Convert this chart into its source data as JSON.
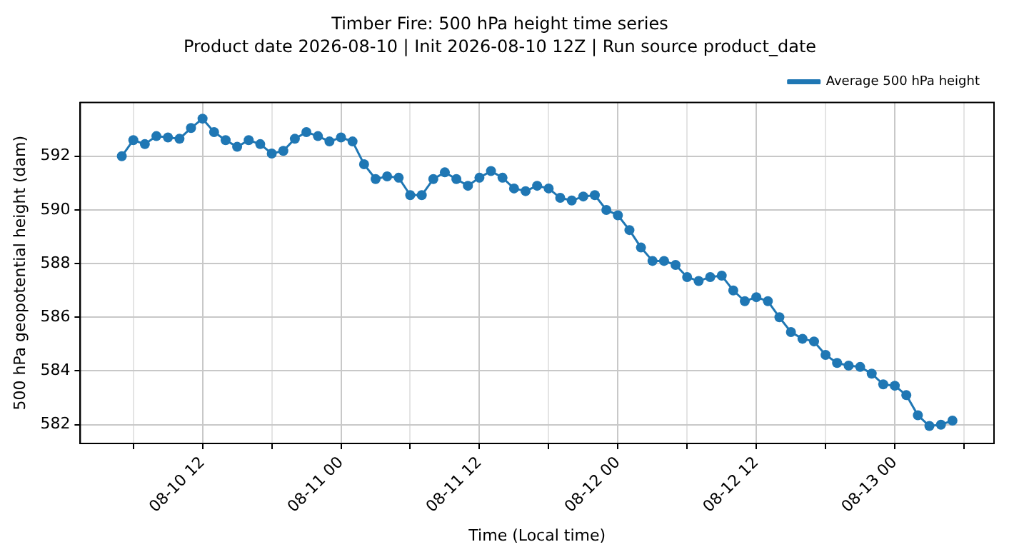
{
  "chart_data": {
    "type": "line",
    "title": "Timber Fire: 500 hPa height time series",
    "subtitle": "Product date 2026-08-10 | Init 2026-08-10 12Z | Run source product_date",
    "xlabel": "Time (Local time)",
    "ylabel": "500 hPa geopotential height (dam)",
    "x": [
      "2026-08-10T05:00",
      "2026-08-10T06:00",
      "2026-08-10T07:00",
      "2026-08-10T08:00",
      "2026-08-10T09:00",
      "2026-08-10T10:00",
      "2026-08-10T11:00",
      "2026-08-10T12:00",
      "2026-08-10T13:00",
      "2026-08-10T14:00",
      "2026-08-10T15:00",
      "2026-08-10T16:00",
      "2026-08-10T17:00",
      "2026-08-10T18:00",
      "2026-08-10T19:00",
      "2026-08-10T20:00",
      "2026-08-10T21:00",
      "2026-08-10T22:00",
      "2026-08-10T23:00",
      "2026-08-11T00:00",
      "2026-08-11T01:00",
      "2026-08-11T02:00",
      "2026-08-11T03:00",
      "2026-08-11T04:00",
      "2026-08-11T05:00",
      "2026-08-11T06:00",
      "2026-08-11T07:00",
      "2026-08-11T08:00",
      "2026-08-11T09:00",
      "2026-08-11T10:00",
      "2026-08-11T11:00",
      "2026-08-11T12:00",
      "2026-08-11T13:00",
      "2026-08-11T14:00",
      "2026-08-11T15:00",
      "2026-08-11T16:00",
      "2026-08-11T17:00",
      "2026-08-11T18:00",
      "2026-08-11T19:00",
      "2026-08-11T20:00",
      "2026-08-11T21:00",
      "2026-08-11T22:00",
      "2026-08-11T23:00",
      "2026-08-12T00:00",
      "2026-08-12T01:00",
      "2026-08-12T02:00",
      "2026-08-12T03:00",
      "2026-08-12T04:00",
      "2026-08-12T05:00",
      "2026-08-12T06:00",
      "2026-08-12T07:00",
      "2026-08-12T08:00",
      "2026-08-12T09:00",
      "2026-08-12T10:00",
      "2026-08-12T11:00",
      "2026-08-12T12:00",
      "2026-08-12T13:00",
      "2026-08-12T14:00",
      "2026-08-12T15:00",
      "2026-08-12T16:00",
      "2026-08-12T17:00",
      "2026-08-12T18:00",
      "2026-08-12T19:00",
      "2026-08-12T20:00",
      "2026-08-12T21:00",
      "2026-08-12T22:00",
      "2026-08-12T23:00",
      "2026-08-13T00:00",
      "2026-08-13T01:00",
      "2026-08-13T02:00",
      "2026-08-13T03:00",
      "2026-08-13T04:00",
      "2026-08-13T05:00"
    ],
    "series": [
      {
        "name": "Average 500 hPa height",
        "color": "#1f77b4",
        "values": [
          592.0,
          592.6,
          592.45,
          592.75,
          592.7,
          592.65,
          593.05,
          593.4,
          592.9,
          592.6,
          592.35,
          592.6,
          592.45,
          592.1,
          592.2,
          592.65,
          592.9,
          592.75,
          592.55,
          592.7,
          592.55,
          591.7,
          591.15,
          591.25,
          591.2,
          590.55,
          590.55,
          591.15,
          591.4,
          591.15,
          590.9,
          591.2,
          591.45,
          591.2,
          590.8,
          590.7,
          590.9,
          590.8,
          590.45,
          590.35,
          590.5,
          590.55,
          590.0,
          589.8,
          589.25,
          588.6,
          588.1,
          588.1,
          587.95,
          587.5,
          587.35,
          587.5,
          587.55,
          587.0,
          586.6,
          586.75,
          586.6,
          586.0,
          585.45,
          585.2,
          585.1,
          584.6,
          584.3,
          584.2,
          584.15,
          583.9,
          583.5,
          583.45,
          583.1,
          582.35,
          581.95,
          582.0,
          582.15
        ]
      }
    ],
    "xlim": [
      "2026-08-10T01:24",
      "2026-08-13T08:36"
    ],
    "xticks": [
      {
        "value": "2026-08-10T06:00",
        "label": null
      },
      {
        "value": "2026-08-10T12:00",
        "label": "08-10 12"
      },
      {
        "value": "2026-08-10T18:00",
        "label": null
      },
      {
        "value": "2026-08-11T00:00",
        "label": "08-11 00"
      },
      {
        "value": "2026-08-11T06:00",
        "label": null
      },
      {
        "value": "2026-08-11T12:00",
        "label": "08-11 12"
      },
      {
        "value": "2026-08-11T18:00",
        "label": null
      },
      {
        "value": "2026-08-12T00:00",
        "label": "08-12 00"
      },
      {
        "value": "2026-08-12T06:00",
        "label": null
      },
      {
        "value": "2026-08-12T12:00",
        "label": "08-12 12"
      },
      {
        "value": "2026-08-12T18:00",
        "label": null
      },
      {
        "value": "2026-08-13T00:00",
        "label": "08-13 00"
      },
      {
        "value": "2026-08-13T06:00",
        "label": null
      }
    ],
    "ylim": [
      581.3,
      594.0
    ],
    "yticks": [
      582,
      584,
      586,
      588,
      590,
      592
    ],
    "grid": true,
    "legend": "top right",
    "marker": "circle",
    "line_style": "solid"
  }
}
